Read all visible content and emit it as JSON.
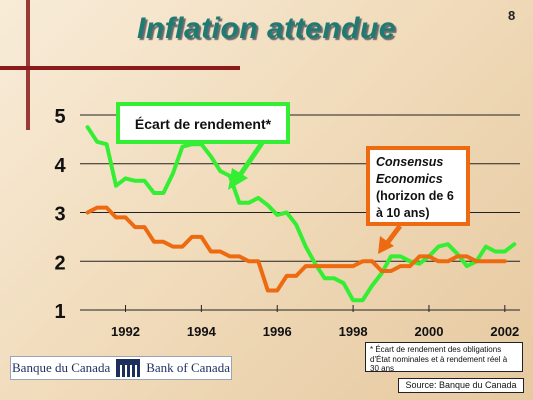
{
  "slide": {
    "title": "Inflation attendue",
    "page_number": "8"
  },
  "chart_data": {
    "type": "line",
    "title": "Inflation attendue",
    "xlabel": "",
    "ylabel": "",
    "xlim": [
      1990.8,
      2002.4
    ],
    "ylim": [
      1,
      5
    ],
    "y_ticks": [
      "1",
      "2",
      "3",
      "4",
      "5"
    ],
    "x_ticks": [
      "1992",
      "1994",
      "1996",
      "1998",
      "2000",
      "2002"
    ],
    "grid": "horizontal",
    "series": [
      {
        "name": "Écart de rendement*",
        "color": "#33ee33",
        "x": [
          1991.0,
          1991.25,
          1991.5,
          1991.75,
          1992.0,
          1992.25,
          1992.5,
          1992.75,
          1993.0,
          1993.25,
          1993.5,
          1993.75,
          1994.0,
          1994.25,
          1994.5,
          1994.75,
          1995.0,
          1995.25,
          1995.5,
          1995.75,
          1996.0,
          1996.25,
          1996.5,
          1996.75,
          1997.0,
          1997.25,
          1997.5,
          1997.75,
          1998.0,
          1998.25,
          1998.5,
          1998.75,
          1999.0,
          1999.25,
          1999.5,
          1999.75,
          2000.0,
          2000.25,
          2000.5,
          2000.75,
          2001.0,
          2001.25,
          2001.5,
          2001.75,
          2002.0,
          2002.25
        ],
        "values": [
          4.75,
          4.45,
          4.4,
          3.55,
          3.7,
          3.65,
          3.65,
          3.4,
          3.4,
          3.8,
          4.35,
          4.4,
          4.4,
          4.15,
          3.85,
          3.75,
          3.2,
          3.2,
          3.3,
          3.15,
          2.95,
          3.0,
          2.75,
          2.3,
          1.95,
          1.65,
          1.65,
          1.55,
          1.2,
          1.2,
          1.5,
          1.75,
          2.1,
          2.1,
          2.0,
          1.95,
          2.1,
          2.3,
          2.35,
          2.15,
          1.9,
          2.0,
          2.3,
          2.2,
          2.2,
          2.35
        ]
      },
      {
        "name": "Consensus Economics (horizon de 6 à 10 ans)",
        "color": "#ee6a10",
        "x": [
          1991.0,
          1991.25,
          1991.5,
          1991.75,
          1992.0,
          1992.25,
          1992.5,
          1992.75,
          1993.0,
          1993.25,
          1993.5,
          1993.75,
          1994.0,
          1994.25,
          1994.5,
          1994.75,
          1995.0,
          1995.25,
          1995.5,
          1995.75,
          1996.0,
          1996.25,
          1996.5,
          1996.75,
          1997.0,
          1997.25,
          1997.5,
          1997.75,
          1998.0,
          1998.25,
          1998.5,
          1998.75,
          1999.0,
          1999.25,
          1999.5,
          1999.75,
          2000.0,
          2000.25,
          2000.5,
          2000.75,
          2001.0,
          2001.25,
          2001.5,
          2001.75,
          2002.0
        ],
        "values": [
          3.0,
          3.1,
          3.1,
          2.9,
          2.9,
          2.7,
          2.7,
          2.4,
          2.4,
          2.3,
          2.3,
          2.5,
          2.5,
          2.2,
          2.2,
          2.1,
          2.1,
          2.0,
          2.0,
          1.4,
          1.4,
          1.7,
          1.7,
          1.9,
          1.9,
          1.9,
          1.9,
          1.9,
          1.9,
          2.0,
          2.0,
          1.8,
          1.8,
          1.9,
          1.9,
          2.1,
          2.1,
          2.0,
          2.0,
          2.1,
          2.1,
          2.0,
          2.0,
          2.0,
          2.0
        ]
      }
    ],
    "annotations": [
      {
        "id": "spread",
        "lines": [
          "Écart de rendement*"
        ],
        "box_fill": "#ffffff",
        "box_border": "#33ee33"
      },
      {
        "id": "consensus",
        "lines": [
          "Consensus",
          "Economics",
          "(horizon de 6",
          "à 10 ans)"
        ],
        "box_fill": "#ffffff",
        "box_border": "#ee6a10"
      }
    ]
  },
  "footnote": "* Écart de rendement des obligations d'État nominales et à rendement réel à 30 ans",
  "source": "Source: Banque du Canada",
  "logo": {
    "left_text": "Banque du Canada",
    "right_text": "Bank of Canada"
  }
}
